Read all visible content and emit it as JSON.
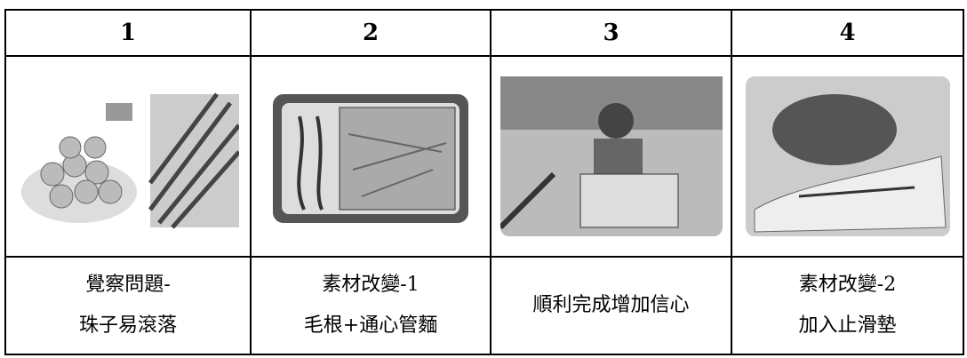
{
  "table": {
    "header": [
      "1",
      "2",
      "3",
      "4"
    ],
    "captions": [
      [
        "覺察問題-",
        "珠子易滾落"
      ],
      [
        "素材改變-1",
        "毛根+通心管麵"
      ],
      [
        "順利完成增加信心"
      ],
      [
        "素材改變-2",
        "加入止滑墊"
      ]
    ]
  }
}
